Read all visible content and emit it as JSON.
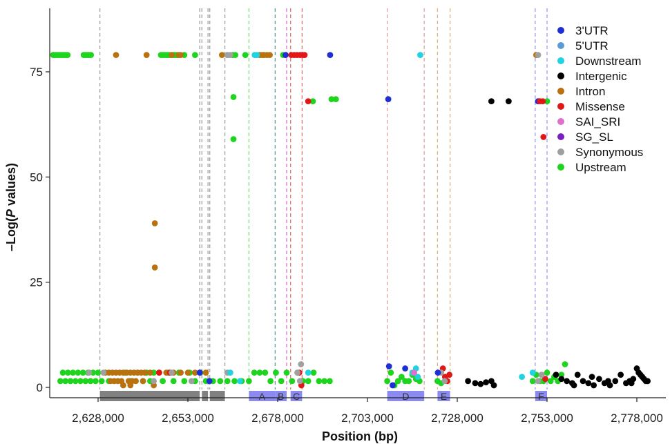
{
  "chart_data": {
    "type": "scatter",
    "title": "",
    "xlabel": "Position (bp)",
    "ylabel_prefix": "–Log(",
    "ylabel_italic": "P",
    "ylabel_suffix": " values)",
    "xlim": [
      2615000,
      2785000
    ],
    "ylim": [
      -4,
      90
    ],
    "x_ticks": [
      2628000,
      2653000,
      2678000,
      2703000,
      2728000,
      2753000,
      2778000
    ],
    "x_tick_labels": [
      "2,628,000",
      "2,653,000",
      "2,678,000",
      "2,703,000",
      "2,728,000",
      "2,753,000",
      "2,778,000"
    ],
    "y_ticks": [
      0,
      25,
      50,
      75
    ],
    "y_tick_labels": [
      "0",
      "25",
      "50",
      "75"
    ],
    "grid": false,
    "legend_position": "top-right",
    "categories": [
      {
        "name": "3'UTR",
        "color": "#1f2fd6"
      },
      {
        "name": "5'UTR",
        "color": "#5b9bd5"
      },
      {
        "name": "Downstream",
        "color": "#1fd3e0"
      },
      {
        "name": "Intergenic",
        "color": "#000000"
      },
      {
        "name": "Intron",
        "color": "#b8720f"
      },
      {
        "name": "Missense",
        "color": "#e01818"
      },
      {
        "name": "SAI_SRI",
        "color": "#e070d0"
      },
      {
        "name": "SG_SL",
        "color": "#7a1fc0"
      },
      {
        "name": "Synonymous",
        "color": "#a0a0a0"
      },
      {
        "name": "Upstream",
        "color": "#1ed41e"
      }
    ],
    "vlines": [
      {
        "x": 2628500,
        "color": "#a0a0a0"
      },
      {
        "x": 2656300,
        "color": "#a0a0a0"
      },
      {
        "x": 2656900,
        "color": "#a0a0a0"
      },
      {
        "x": 2658600,
        "color": "#a0a0a0"
      },
      {
        "x": 2659100,
        "color": "#a0a0a0"
      },
      {
        "x": 2663300,
        "color": "#a0a0a0"
      },
      {
        "x": 2670000,
        "color": "#7ad87a"
      },
      {
        "x": 2677300,
        "color": "#5a9a9a"
      },
      {
        "x": 2680500,
        "color": "#e070d0"
      },
      {
        "x": 2681600,
        "color": "#e07070"
      },
      {
        "x": 2684800,
        "color": "#e07070"
      },
      {
        "x": 2708500,
        "color": "#e0a0a0"
      },
      {
        "x": 2718800,
        "color": "#e0a0a0"
      },
      {
        "x": 2722500,
        "color": "#e0b080"
      },
      {
        "x": 2726000,
        "color": "#e0b080"
      },
      {
        "x": 2749700,
        "color": "#9a9af0"
      },
      {
        "x": 2753000,
        "color": "#9a9af0"
      }
    ],
    "gene_bars": [
      {
        "label": "",
        "start": 2628500,
        "end": 2656300,
        "color": "#808080"
      },
      {
        "label": "",
        "start": 2656900,
        "end": 2658600,
        "color": "#808080"
      },
      {
        "label": "",
        "start": 2659100,
        "end": 2663300,
        "color": "#808080"
      },
      {
        "label": "A",
        "start": 2670000,
        "end": 2677300,
        "color": "#8a8af0"
      },
      {
        "label": "B",
        "start": 2677300,
        "end": 2680500,
        "color": "#8a8af0"
      },
      {
        "label": "C",
        "start": 2681600,
        "end": 2684800,
        "color": "#8a8af0"
      },
      {
        "label": "D",
        "start": 2708500,
        "end": 2718800,
        "color": "#8a8af0"
      },
      {
        "label": "E",
        "start": 2722500,
        "end": 2726000,
        "color": "#8a8af0"
      },
      {
        "label": "F",
        "start": 2749700,
        "end": 2753000,
        "color": "#8a8af0"
      }
    ],
    "points": [
      {
        "category": "Upstream",
        "x": [
          2615500,
          2616000,
          2616500,
          2617000,
          2617500,
          2618000,
          2618500,
          2619000,
          2619500,
          2624000,
          2624500,
          2625000,
          2625500,
          2626000,
          2645500,
          2646000,
          2646500,
          2647000,
          2647500,
          2648000,
          2648500,
          2649000,
          2649500,
          2650000,
          2652000,
          2655000,
          2665500,
          2666200,
          2669000,
          2673500,
          2674200,
          2679500,
          2687800,
          2693000,
          2694200,
          2753000,
          2665700,
          2665700
        ],
        "y": [
          79,
          79,
          79,
          79,
          79,
          79,
          79,
          79,
          79,
          79,
          79,
          79,
          79,
          79,
          79,
          79,
          79,
          79,
          79,
          79,
          79,
          79,
          79,
          79,
          79,
          79,
          79,
          79,
          79,
          79,
          79,
          79,
          68,
          68.5,
          68.5,
          68,
          69,
          59
        ]
      },
      {
        "category": "Intron",
        "x": [
          2633000,
          2641500,
          2648500,
          2650500,
          2651000,
          2662500,
          2673000,
          2674000,
          2675000,
          2675800,
          2643800,
          2643800,
          2750000
        ],
        "y": [
          79,
          79,
          79,
          79,
          79,
          79,
          79,
          79,
          79,
          79,
          39,
          28.5,
          79
        ]
      },
      {
        "category": "Synonymous",
        "x": [
          2664000,
          2664800,
          2750500,
          2664000
        ],
        "y": [
          79,
          79,
          79,
          79
        ]
      },
      {
        "category": "Downstream",
        "x": [
          2671600,
          2672200,
          2717700
        ],
        "y": [
          79,
          79,
          79
        ]
      },
      {
        "category": "3'UTR",
        "x": [
          2680200,
          2692600,
          2750500,
          2708800
        ],
        "y": [
          79,
          79,
          68,
          68.5
        ]
      },
      {
        "category": "Missense",
        "x": [
          2681800,
          2682600,
          2683400,
          2684200,
          2684900,
          2685500,
          2686500,
          2751000,
          2751800,
          2752000
        ],
        "y": [
          79,
          79,
          79,
          79,
          79,
          79,
          68,
          68,
          68,
          59.5
        ]
      },
      {
        "category": "Intergenic",
        "x": [
          2737500,
          2742300
        ],
        "y": [
          68,
          68
        ]
      },
      {
        "category": "Upstream",
        "x": [
          2617500,
          2618200,
          2618900,
          2619600,
          2620300,
          2621000,
          2621700,
          2622400,
          2623100,
          2623800,
          2624500,
          2625200,
          2625900,
          2626600,
          2627300,
          2628000,
          2629000,
          2630000,
          2631000,
          2635500,
          2637000,
          2639000,
          2640500,
          2641500,
          2642500,
          2643500,
          2646000,
          2647500,
          2649000,
          2650500,
          2652000,
          2653500,
          2655000,
          2656500,
          2658000,
          2660000,
          2662000,
          2664000,
          2666000,
          2668000,
          2670000,
          2671500,
          2673000,
          2674500,
          2676000,
          2677500,
          2679000,
          2680500,
          2682000,
          2683500,
          2685000,
          2686500,
          2688000,
          2689500,
          2691000,
          2692500,
          2708500,
          2709500,
          2710500,
          2711500,
          2712500,
          2713500,
          2714500,
          2715500,
          2716500,
          2717500,
          2722500,
          2723500,
          2749000,
          2750000,
          2751000,
          2752000,
          2753000,
          2754000,
          2755000,
          2756000,
          2757000,
          2758000
        ],
        "y": [
          1.5,
          3.5,
          1.5,
          3.5,
          1.5,
          3.5,
          1.5,
          3.5,
          1.5,
          3.5,
          1.5,
          3.5,
          1.5,
          3.5,
          1.5,
          3.5,
          1.5,
          3.5,
          1.5,
          3.5,
          1.5,
          3.5,
          1.5,
          3.5,
          1.5,
          3.5,
          1.5,
          3.5,
          1.5,
          3.5,
          1.5,
          3.5,
          1.5,
          3.5,
          1.5,
          1.5,
          1.5,
          1.5,
          1.5,
          1.5,
          1.5,
          3.5,
          3.5,
          3.5,
          1.5,
          3.5,
          1.5,
          3.5,
          1.5,
          3.5,
          1.5,
          1.5,
          3.5,
          1.5,
          1.5,
          1.5,
          1.5,
          3.5,
          0.5,
          1.5,
          2.5,
          1.5,
          1.5,
          3,
          2,
          1.5,
          1.5,
          1,
          1.5,
          3,
          1.5,
          1.5,
          3.5,
          1.5,
          2.5,
          1.5,
          3,
          5.5
        ]
      },
      {
        "category": "Intron",
        "x": [
          2630000,
          2631000,
          2632000,
          2633000,
          2634000,
          2635000,
          2636000,
          2637000,
          2638000,
          2639000,
          2640000,
          2641000,
          2631500,
          2632500,
          2633500,
          2634500,
          2636500,
          2637500,
          2638500,
          2640500,
          2642500,
          2645000,
          2647000,
          2649000,
          2651000,
          2653000,
          2655000,
          2658000,
          2635000,
          2637000,
          2643500
        ],
        "y": [
          3.5,
          3.5,
          3.5,
          3.5,
          3.5,
          3.5,
          3.5,
          3.5,
          3.5,
          3.5,
          3.5,
          3.5,
          1.5,
          1.5,
          1.5,
          1.5,
          1.5,
          1.5,
          1.5,
          1.5,
          3.5,
          3.5,
          3.5,
          3.5,
          3.5,
          3.5,
          3.5,
          3.5,
          0.5,
          0.5,
          0.5
        ]
      },
      {
        "category": "Missense",
        "x": [
          2645000,
          2648000,
          2684000,
          2684600,
          2724000,
          2724600,
          2725200,
          2725800,
          2751500,
          2752500
        ],
        "y": [
          3.5,
          3.5,
          3.5,
          0.5,
          4.5,
          2.5,
          1.5,
          3,
          3,
          2
        ]
      },
      {
        "category": "Synonymous",
        "x": [
          2625500,
          2629500,
          2643500,
          2648500,
          2654000,
          2664000,
          2683500,
          2684200,
          2684500,
          2723500,
          2724500,
          2750500,
          2751500
        ],
        "y": [
          3.5,
          3.5,
          1.5,
          3.5,
          1.5,
          3.5,
          3.5,
          1.5,
          5.5,
          3.5,
          1.5,
          1.5,
          3
        ]
      },
      {
        "category": "Downstream",
        "x": [
          2664800,
          2667500,
          2686500,
          2715500,
          2716500,
          2717000,
          2746000,
          2749000
        ],
        "y": [
          3.5,
          1.5,
          3.5,
          3.5,
          4.5,
          2.5,
          2.5,
          3.5
        ]
      },
      {
        "category": "3'UTR",
        "x": [
          2656300,
          2659000,
          2709000,
          2710000,
          2713500,
          2722600
        ],
        "y": [
          3.5,
          1.5,
          5,
          0.5,
          4.5,
          3.5
        ]
      },
      {
        "category": "SAI_SRI",
        "x": [
          2716000
        ],
        "y": [
          3.5
        ]
      },
      {
        "category": "Intergenic",
        "x": [
          2731000,
          2733000,
          2734500,
          2736000,
          2737500,
          2738200,
          2755500,
          2757000,
          2758500,
          2760000,
          2761500,
          2763000,
          2764500,
          2766000,
          2767500,
          2769000,
          2770500,
          2772000,
          2773500,
          2775000,
          2776000,
          2777000,
          2778000,
          2779000,
          2780000,
          2781000,
          2778500,
          2779500,
          2780500,
          2760500,
          2765500,
          2770000,
          2776500
        ],
        "y": [
          1.5,
          1,
          0.8,
          1.2,
          1.5,
          0.5,
          3,
          2,
          1.5,
          1,
          3,
          1.5,
          1,
          0.5,
          2,
          1,
          0.5,
          1.5,
          3,
          1,
          1.5,
          2,
          4.5,
          3,
          2,
          1.5,
          3.5,
          2.5,
          1.5,
          0.5,
          2.5,
          1.5,
          1
        ]
      }
    ]
  }
}
